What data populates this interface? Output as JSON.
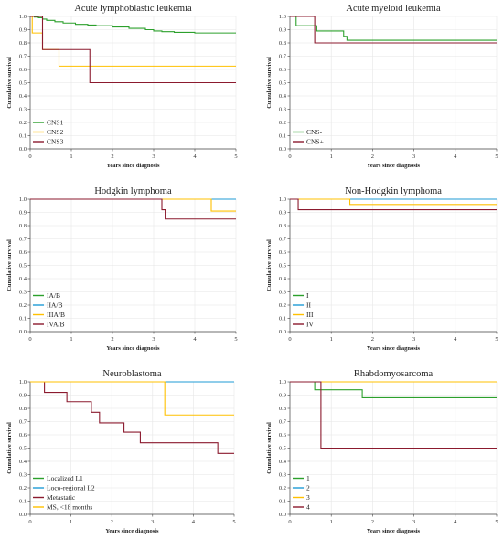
{
  "colors": {
    "green": "#2ca02c",
    "blue": "#1f9bd6",
    "yellow": "#ffc000",
    "red": "#8b1a2e",
    "gray": "#cfcfcf"
  },
  "chart_data": [
    {
      "type": "line",
      "title": "Acute lymphoblastic leukemia",
      "xlabel": "Years since diagnosis",
      "ylabel": "Cumulative survival",
      "xlim": [
        0,
        5
      ],
      "ylim": [
        0,
        1
      ],
      "xticks": [
        "0",
        "1",
        "2",
        "3",
        "4",
        "5"
      ],
      "yticks": [
        "0.0",
        "0.1",
        "0.2",
        "0.3",
        "0.4",
        "0.5",
        "0.6",
        "0.7",
        "0.8",
        "0.9",
        "1.0"
      ],
      "legend_position": "bottom-left",
      "series": [
        {
          "name": "CNS1",
          "color": "#2ca02c",
          "x": [
            0,
            0.1,
            0.2,
            0.3,
            0.4,
            0.6,
            0.8,
            1.1,
            1.4,
            1.6,
            2.0,
            2.4,
            2.8,
            3.0,
            3.2,
            3.5,
            4.0,
            5.0
          ],
          "y": [
            1.0,
            0.995,
            0.99,
            0.98,
            0.97,
            0.96,
            0.95,
            0.94,
            0.935,
            0.93,
            0.92,
            0.91,
            0.9,
            0.89,
            0.885,
            0.88,
            0.875,
            0.875
          ]
        },
        {
          "name": "CNS2",
          "color": "#ffc000",
          "x": [
            0,
            0.05,
            0.3,
            0.7,
            5.0
          ],
          "y": [
            1.0,
            0.875,
            0.75,
            0.625,
            0.625
          ]
        },
        {
          "name": "CNS3",
          "color": "#8b1a2e",
          "x": [
            0,
            0.3,
            1.45,
            5.0
          ],
          "y": [
            1.0,
            0.75,
            0.5,
            0.5
          ]
        }
      ]
    },
    {
      "type": "line",
      "title": "Acute myeloid leukemia",
      "xlabel": "Years since diagnosis",
      "ylabel": "Cumulative survival",
      "xlim": [
        0,
        5
      ],
      "ylim": [
        0,
        1
      ],
      "xticks": [
        "0",
        "1",
        "2",
        "3",
        "4",
        "5"
      ],
      "yticks": [
        "0.0",
        "0.1",
        "0.2",
        "0.3",
        "0.4",
        "0.5",
        "0.6",
        "0.7",
        "0.8",
        "0.9",
        "1.0"
      ],
      "legend_position": "bottom-left",
      "series": [
        {
          "name": "CNS-",
          "color": "#2ca02c",
          "x": [
            0,
            0.15,
            0.65,
            1.3,
            1.38,
            5.0
          ],
          "y": [
            1.0,
            0.93,
            0.89,
            0.85,
            0.82,
            0.82
          ]
        },
        {
          "name": "CNS+",
          "color": "#8b1a2e",
          "x": [
            0,
            0.6,
            5.0
          ],
          "y": [
            1.0,
            0.8,
            0.8
          ]
        }
      ]
    },
    {
      "type": "line",
      "title": "Hodgkin lymphoma",
      "xlabel": "Years since diagnosis",
      "ylabel": "Cumulative survival",
      "xlim": [
        0,
        5
      ],
      "ylim": [
        0,
        1
      ],
      "xticks": [
        "0",
        "1",
        "2",
        "3",
        "4",
        "5"
      ],
      "yticks": [
        "0.0",
        "0.1",
        "0.2",
        "0.3",
        "0.4",
        "0.5",
        "0.6",
        "0.7",
        "0.8",
        "0.9",
        "1.0"
      ],
      "legend_position": "bottom-left",
      "series": [
        {
          "name": "IA/B",
          "color": "#2ca02c",
          "x": [
            0,
            5.0
          ],
          "y": [
            1.0,
            1.0
          ]
        },
        {
          "name": "IIA/B",
          "color": "#1f9bd6",
          "x": [
            0,
            5.0
          ],
          "y": [
            1.0,
            1.0
          ]
        },
        {
          "name": "IIIA/B",
          "color": "#ffc000",
          "x": [
            0,
            4.4,
            5.0
          ],
          "y": [
            1.0,
            0.91,
            0.91
          ]
        },
        {
          "name": "IVA/B",
          "color": "#8b1a2e",
          "x": [
            0,
            3.2,
            3.28,
            5.0
          ],
          "y": [
            1.0,
            0.92,
            0.85,
            0.85
          ]
        }
      ]
    },
    {
      "type": "line",
      "title": "Non-Hodgkin lymphoma",
      "xlabel": "Years since diagnosis",
      "ylabel": "Cumulative survival",
      "xlim": [
        0,
        5
      ],
      "ylim": [
        0,
        1
      ],
      "xticks": [
        "0",
        "1",
        "2",
        "3",
        "4",
        "5"
      ],
      "yticks": [
        "0.0",
        "0.1",
        "0.2",
        "0.3",
        "0.4",
        "0.5",
        "0.6",
        "0.7",
        "0.8",
        "0.9",
        "1.0"
      ],
      "legend_position": "bottom-left",
      "series": [
        {
          "name": "I",
          "color": "#2ca02c",
          "x": [
            0,
            5.0
          ],
          "y": [
            1.0,
            1.0
          ]
        },
        {
          "name": "II",
          "color": "#1f9bd6",
          "x": [
            0,
            5.0
          ],
          "y": [
            1.0,
            1.0
          ]
        },
        {
          "name": "III",
          "color": "#ffc000",
          "x": [
            0,
            1.45,
            5.0
          ],
          "y": [
            1.0,
            0.96,
            0.96
          ]
        },
        {
          "name": "IV",
          "color": "#8b1a2e",
          "x": [
            0,
            0.2,
            5.0
          ],
          "y": [
            1.0,
            0.92,
            0.92
          ]
        }
      ]
    },
    {
      "type": "line",
      "title": "Neuroblastoma",
      "xlabel": "Years since diagnosis",
      "ylabel": "Cumulative survival",
      "xlim": [
        0,
        5
      ],
      "ylim": [
        0,
        1
      ],
      "xticks": [
        "0",
        "1",
        "2",
        "3",
        "4",
        "5"
      ],
      "yticks": [
        "0.0",
        "0.1",
        "0.2",
        "0.3",
        "0.4",
        "0.5",
        "0.6",
        "0.7",
        "0.8",
        "0.9",
        "1.0"
      ],
      "legend_position": "bottom-left",
      "series": [
        {
          "name": "Localized L1",
          "color": "#2ca02c",
          "x": [
            0,
            5.0
          ],
          "y": [
            1.0,
            1.0
          ]
        },
        {
          "name": "Loco-regional L2",
          "color": "#1f9bd6",
          "x": [
            0,
            5.0
          ],
          "y": [
            1.0,
            1.0
          ]
        },
        {
          "name": "Metastatic",
          "color": "#8b1a2e",
          "x": [
            0,
            0.35,
            0.9,
            1.5,
            1.7,
            2.3,
            2.7,
            4.6,
            5.0
          ],
          "y": [
            1.0,
            0.92,
            0.85,
            0.77,
            0.69,
            0.62,
            0.54,
            0.46,
            0.46
          ]
        },
        {
          "name": "MS, <18 months",
          "color": "#ffc000",
          "x": [
            0,
            3.3,
            5.0
          ],
          "y": [
            1.0,
            0.75,
            0.75
          ]
        }
      ]
    },
    {
      "type": "line",
      "title": "Rhabdomyosarcoma",
      "xlabel": "Years since diagnosis",
      "ylabel": "Cumulative survival",
      "xlim": [
        0,
        5
      ],
      "ylim": [
        0,
        1
      ],
      "xticks": [
        "0",
        "1",
        "2",
        "3",
        "4",
        "5"
      ],
      "yticks": [
        "0.0",
        "0.1",
        "0.2",
        "0.3",
        "0.4",
        "0.5",
        "0.6",
        "0.7",
        "0.8",
        "0.9",
        "1.0"
      ],
      "legend_position": "bottom-left",
      "series": [
        {
          "name": "1",
          "color": "#2ca02c",
          "x": [
            0,
            0.6,
            1.75,
            5.0
          ],
          "y": [
            1.0,
            0.94,
            0.88,
            0.88
          ]
        },
        {
          "name": "2",
          "color": "#1f9bd6",
          "x": [
            0,
            5.0
          ],
          "y": [
            1.0,
            1.0
          ]
        },
        {
          "name": "3",
          "color": "#ffc000",
          "x": [
            0,
            5.0
          ],
          "y": [
            1.0,
            1.0
          ]
        },
        {
          "name": "4",
          "color": "#8b1a2e",
          "x": [
            0,
            0.75,
            5.0
          ],
          "y": [
            1.0,
            0.5,
            0.5
          ]
        }
      ]
    }
  ]
}
